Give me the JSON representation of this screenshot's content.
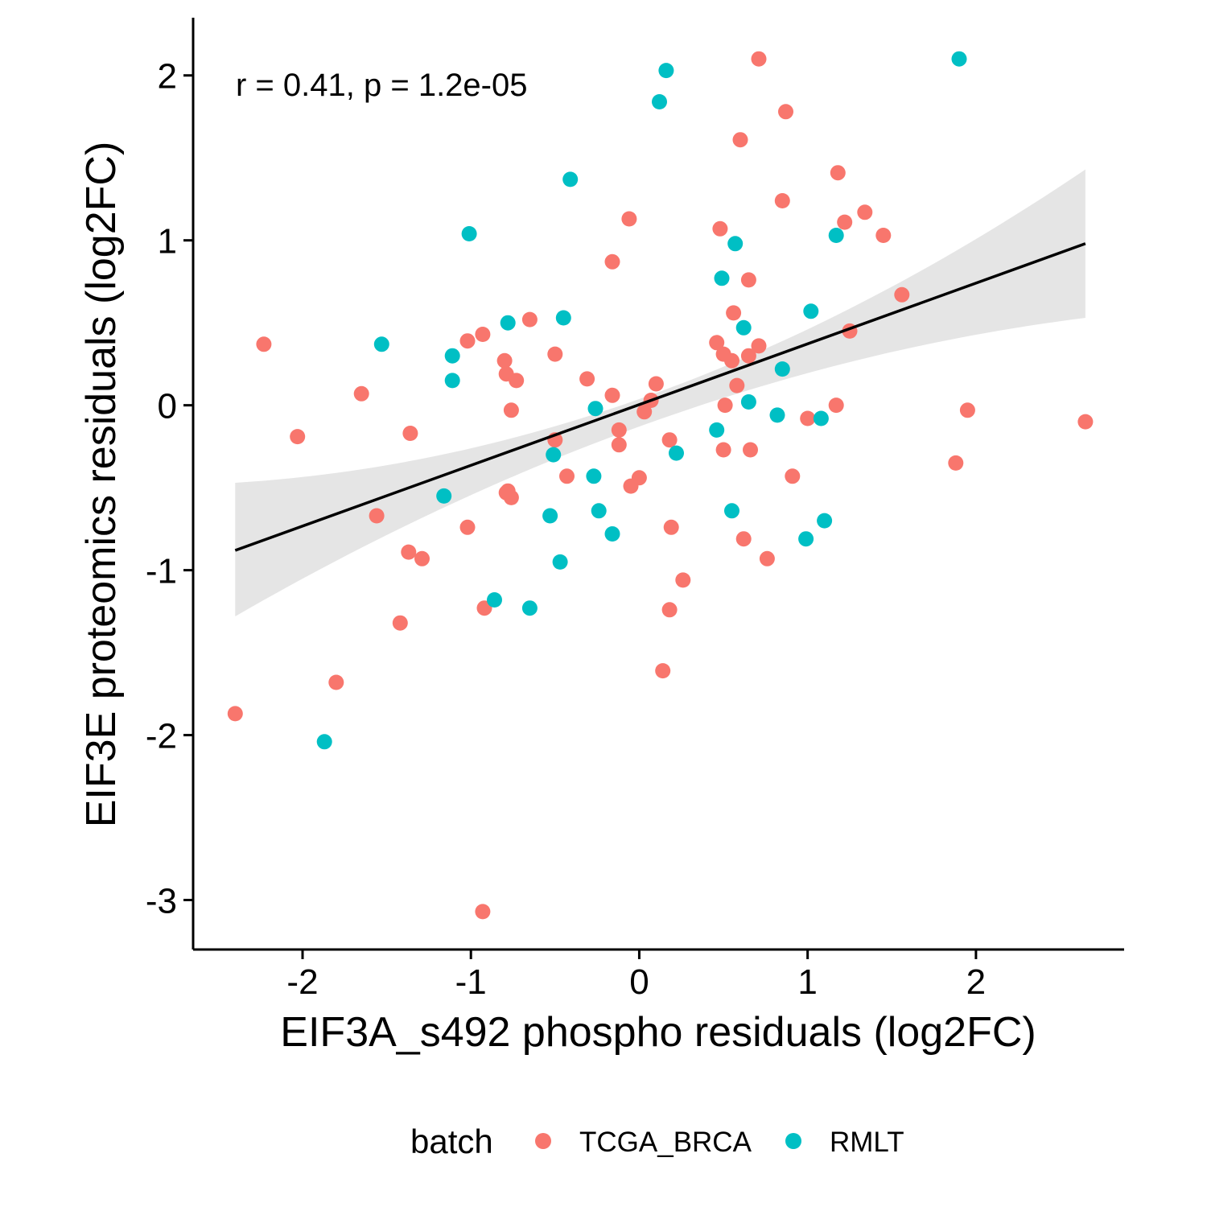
{
  "chart_data": {
    "type": "scatter",
    "xlabel": "EIF3A_s492 phospho residuals (log2FC)",
    "ylabel": "EIF3E proteomics residuals (log2FC)",
    "xlim": [
      -2.65,
      2.88
    ],
    "ylim": [
      -3.3,
      2.35
    ],
    "x_ticks": [
      -2,
      -1,
      0,
      1,
      2
    ],
    "y_ticks": [
      -3,
      -2,
      -1,
      0,
      1,
      2
    ],
    "grid": false,
    "annotation": "r = 0.41, p = 1.2e-05",
    "legend": {
      "title": "batch",
      "placement": "bottom",
      "entries": [
        "TCGA_BRCA",
        "RMLT"
      ]
    },
    "colors": {
      "TCGA_BRCA": "#F8766D",
      "RMLT": "#00BFC4"
    },
    "regression": {
      "x_start": -2.4,
      "y_start": -0.88,
      "x_end": 2.65,
      "y_end": 0.98,
      "ci_upper_start": -0.47,
      "ci_lower_start": -1.28,
      "ci_upper_end": 1.43,
      "ci_lower_end": 0.53,
      "ci_upper_mid": 0.12,
      "ci_lower_mid": -0.05,
      "mid_x": 0.22
    },
    "series": [
      {
        "name": "TCGA_BRCA",
        "points": [
          [
            -2.4,
            -1.87
          ],
          [
            -2.23,
            0.37
          ],
          [
            -2.03,
            -0.19
          ],
          [
            -1.65,
            0.07
          ],
          [
            -1.8,
            -1.68
          ],
          [
            -1.56,
            -0.67
          ],
          [
            -1.42,
            -1.32
          ],
          [
            -1.36,
            -0.17
          ],
          [
            -1.37,
            -0.89
          ],
          [
            -1.29,
            -0.93
          ],
          [
            -1.02,
            0.39
          ],
          [
            -1.02,
            -0.74
          ],
          [
            -0.93,
            0.43
          ],
          [
            -0.92,
            -1.23
          ],
          [
            -0.93,
            -3.07
          ],
          [
            -0.8,
            0.27
          ],
          [
            -0.79,
            0.19
          ],
          [
            -0.73,
            0.15
          ],
          [
            -0.76,
            -0.03
          ],
          [
            -0.79,
            -0.53
          ],
          [
            -0.76,
            -0.56
          ],
          [
            -0.78,
            -0.52
          ],
          [
            -0.65,
            0.52
          ],
          [
            -0.5,
            0.31
          ],
          [
            -0.5,
            -0.21
          ],
          [
            -0.43,
            -0.43
          ],
          [
            -0.31,
            0.16
          ],
          [
            -0.16,
            0.87
          ],
          [
            -0.06,
            1.13
          ],
          [
            -0.16,
            0.06
          ],
          [
            -0.12,
            -0.15
          ],
          [
            -0.12,
            -0.24
          ],
          [
            -0.05,
            -0.49
          ],
          [
            0.0,
            -0.44
          ],
          [
            0.1,
            0.13
          ],
          [
            0.07,
            0.03
          ],
          [
            0.03,
            -0.04
          ],
          [
            0.18,
            -0.21
          ],
          [
            0.19,
            -0.74
          ],
          [
            0.26,
            -1.06
          ],
          [
            0.18,
            -1.24
          ],
          [
            0.14,
            -1.61
          ],
          [
            0.48,
            1.07
          ],
          [
            0.6,
            1.61
          ],
          [
            0.71,
            2.1
          ],
          [
            0.87,
            1.78
          ],
          [
            0.85,
            1.24
          ],
          [
            0.46,
            0.38
          ],
          [
            0.56,
            0.56
          ],
          [
            0.65,
            0.76
          ],
          [
            0.5,
            0.31
          ],
          [
            0.55,
            0.27
          ],
          [
            0.58,
            0.12
          ],
          [
            0.65,
            0.3
          ],
          [
            0.71,
            0.36
          ],
          [
            0.51,
            0.0
          ],
          [
            0.5,
            -0.27
          ],
          [
            0.66,
            -0.27
          ],
          [
            0.62,
            -0.81
          ],
          [
            0.76,
            -0.93
          ],
          [
            0.91,
            -0.43
          ],
          [
            1.0,
            -0.08
          ],
          [
            1.18,
            1.41
          ],
          [
            1.22,
            1.11
          ],
          [
            1.34,
            1.17
          ],
          [
            1.45,
            1.03
          ],
          [
            1.17,
            0.0
          ],
          [
            1.25,
            0.45
          ],
          [
            1.56,
            0.67
          ],
          [
            1.95,
            -0.03
          ],
          [
            1.88,
            -0.35
          ],
          [
            2.65,
            -0.1
          ]
        ]
      },
      {
        "name": "RMLT",
        "points": [
          [
            -1.87,
            -2.04
          ],
          [
            -1.53,
            0.37
          ],
          [
            -1.11,
            0.3
          ],
          [
            -1.11,
            0.15
          ],
          [
            -1.01,
            1.04
          ],
          [
            -1.16,
            -0.55
          ],
          [
            -0.86,
            -1.18
          ],
          [
            -0.78,
            0.5
          ],
          [
            -0.65,
            -1.23
          ],
          [
            -0.53,
            -0.67
          ],
          [
            -0.51,
            -0.3
          ],
          [
            -0.47,
            -0.95
          ],
          [
            -0.45,
            0.53
          ],
          [
            -0.41,
            1.37
          ],
          [
            -0.27,
            -0.43
          ],
          [
            -0.26,
            -0.02
          ],
          [
            -0.24,
            -0.64
          ],
          [
            -0.16,
            -0.78
          ],
          [
            0.12,
            1.84
          ],
          [
            0.16,
            2.03
          ],
          [
            0.22,
            -0.29
          ],
          [
            0.46,
            -0.15
          ],
          [
            0.49,
            0.77
          ],
          [
            0.57,
            0.98
          ],
          [
            0.55,
            -0.64
          ],
          [
            0.62,
            0.47
          ],
          [
            0.65,
            0.02
          ],
          [
            0.82,
            -0.06
          ],
          [
            0.85,
            0.22
          ],
          [
            0.99,
            -0.81
          ],
          [
            1.02,
            0.57
          ],
          [
            1.08,
            -0.08
          ],
          [
            1.1,
            -0.7
          ],
          [
            1.17,
            1.03
          ],
          [
            1.9,
            2.1
          ]
        ]
      }
    ]
  }
}
